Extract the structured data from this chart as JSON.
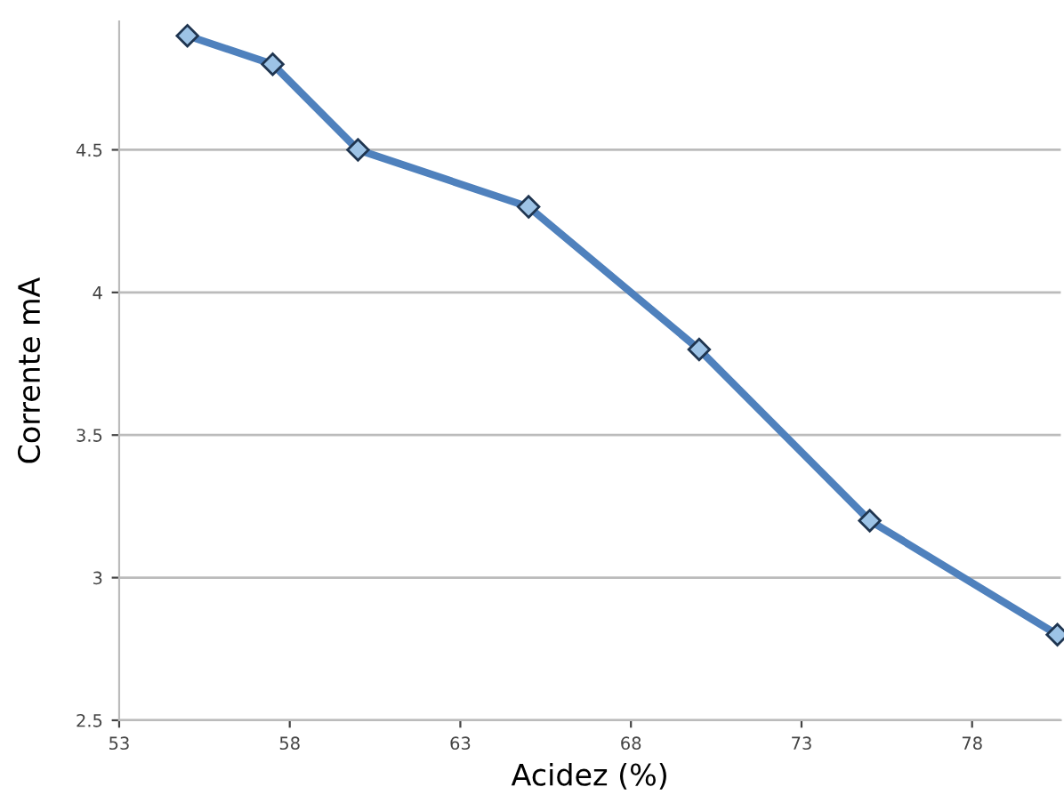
{
  "chart_data": {
    "type": "line",
    "xlabel": "Acidez (%)",
    "ylabel": "Corrente mA",
    "x": [
      55,
      57.5,
      60,
      65,
      70,
      75,
      80.5
    ],
    "series": [
      {
        "color": "#4f81bd",
        "values": [
          4.9,
          4.8,
          4.5,
          4.3,
          3.8,
          3.2,
          2.8
        ]
      }
    ],
    "xlim": [
      53,
      80.6
    ],
    "xticks": [
      53,
      58,
      63,
      68,
      73,
      78
    ],
    "ylim": [
      2.5,
      4.95
    ],
    "yticks": [
      2.5,
      3,
      3.5,
      4,
      4.5
    ],
    "grid": "y",
    "marker": "diamond",
    "line_style": "solid"
  }
}
